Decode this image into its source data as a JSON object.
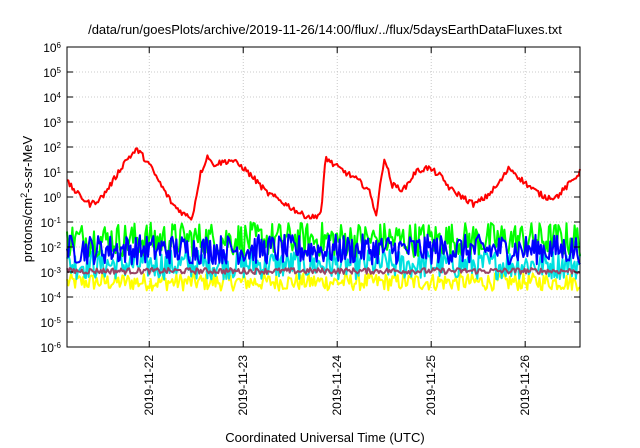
{
  "chart_data": {
    "type": "line",
    "title": "/data/run/goesPlots/archive/2019-11-26/14:00/flux/../flux/5daysEarthDataFluxes.txt",
    "xlabel": "Coordinated Universal Time (UTC)",
    "ylabel": {
      "base": "protons/cm",
      "sup": "2",
      "rest": "-s-sr-MeV"
    },
    "scale": {
      "y": "log10"
    },
    "xlim": [
      "2019-11-21T03:00",
      "2019-11-26T14:00"
    ],
    "ylim": [
      1e-06,
      1000000.0
    ],
    "grid": true,
    "y_ticks": [
      {
        "exp": -6,
        "label": "10",
        "sup": "-6"
      },
      {
        "exp": -5,
        "label": "10",
        "sup": "-5"
      },
      {
        "exp": -4,
        "label": "10",
        "sup": "-4"
      },
      {
        "exp": -3,
        "label": "10",
        "sup": "-3"
      },
      {
        "exp": -2,
        "label": "10",
        "sup": "-2"
      },
      {
        "exp": -1,
        "label": "10",
        "sup": "-1"
      },
      {
        "exp": 0,
        "label": "10",
        "sup": "0"
      },
      {
        "exp": 1,
        "label": "10",
        "sup": "1"
      },
      {
        "exp": 2,
        "label": "10",
        "sup": "2"
      },
      {
        "exp": 3,
        "label": "10",
        "sup": "3"
      },
      {
        "exp": 4,
        "label": "10",
        "sup": "4"
      },
      {
        "exp": 5,
        "label": "10",
        "sup": "5"
      },
      {
        "exp": 6,
        "label": "10",
        "sup": "6"
      }
    ],
    "x_ticks": [
      {
        "label": "2019-11-22",
        "value": "2019-11-22T00:00"
      },
      {
        "label": "2019-11-23",
        "value": "2019-11-23T00:00"
      },
      {
        "label": "2019-11-24",
        "value": "2019-11-24T00:00"
      },
      {
        "label": "2019-11-25",
        "value": "2019-11-25T00:00"
      },
      {
        "label": "2019-11-26",
        "value": "2019-11-26T00:00"
      }
    ],
    "series": [
      {
        "color": "#ffff00",
        "noise": 0.35,
        "x": [
          "2019-11-21T03:00",
          "2019-11-26T14:00"
        ],
        "y": [
          0.0004,
          0.0004
        ]
      },
      {
        "color": "#00e0e0",
        "noise": 0.6,
        "x": [
          "2019-11-21T03:00",
          "2019-11-26T14:00"
        ],
        "y": [
          0.002,
          0.002
        ]
      },
      {
        "color": "#00ff00",
        "noise": 0.7,
        "x": [
          "2019-11-21T03:00",
          "2019-11-26T14:00"
        ],
        "y": [
          0.02,
          0.02
        ]
      },
      {
        "color": "#0000ff",
        "noise": 0.6,
        "x": [
          "2019-11-21T03:00",
          "2019-11-26T14:00"
        ],
        "y": [
          0.008,
          0.008
        ]
      },
      {
        "color": "#994466",
        "noise": 0.12,
        "x": [
          "2019-11-21T03:00",
          "2019-11-26T14:00"
        ],
        "y": [
          0.0011,
          0.0011
        ]
      },
      {
        "color": "#ff0000",
        "noise": 0.12,
        "x": [
          "2019-11-21T03:00",
          "2019-11-21T06:00",
          "2019-11-21T09:00",
          "2019-11-21T12:00",
          "2019-11-21T15:00",
          "2019-11-21T18:00",
          "2019-11-21T21:00",
          "2019-11-22T00:00",
          "2019-11-22T03:00",
          "2019-11-22T06:00",
          "2019-11-22T09:00",
          "2019-11-22T11:00",
          "2019-11-22T13:00",
          "2019-11-22T15:00",
          "2019-11-22T16:00",
          "2019-11-22T21:00",
          "2019-11-23T00:00",
          "2019-11-23T03:00",
          "2019-11-23T06:00",
          "2019-11-23T09:00",
          "2019-11-23T12:00",
          "2019-11-23T15:00",
          "2019-11-23T18:00",
          "2019-11-23T20:00",
          "2019-11-23T21:00",
          "2019-11-23T23:00",
          "2019-11-24T02:00",
          "2019-11-24T05:00",
          "2019-11-24T08:00",
          "2019-11-24T10:00",
          "2019-11-24T12:00",
          "2019-11-24T14:00",
          "2019-11-24T17:00",
          "2019-11-24T20:00",
          "2019-11-24T23:00",
          "2019-11-25T02:00",
          "2019-11-25T05:00",
          "2019-11-25T08:00",
          "2019-11-25T11:00",
          "2019-11-25T14:00",
          "2019-11-25T17:00",
          "2019-11-25T20:00",
          "2019-11-25T23:00",
          "2019-11-26T02:00",
          "2019-11-26T05:00",
          "2019-11-26T08:00",
          "2019-11-26T11:00",
          "2019-11-26T14:00"
        ],
        "y": [
          4,
          1.2,
          0.5,
          1,
          5,
          30,
          80,
          20,
          3,
          0.5,
          0.2,
          0.15,
          8,
          50,
          20,
          30,
          15,
          5,
          1.5,
          0.8,
          0.4,
          0.2,
          0.15,
          0.25,
          40,
          20,
          10,
          5,
          2,
          0.2,
          40,
          3,
          2,
          10,
          15,
          8,
          2,
          1,
          0.5,
          1,
          3,
          15,
          5,
          2,
          1,
          1,
          3,
          10
        ]
      }
    ]
  }
}
